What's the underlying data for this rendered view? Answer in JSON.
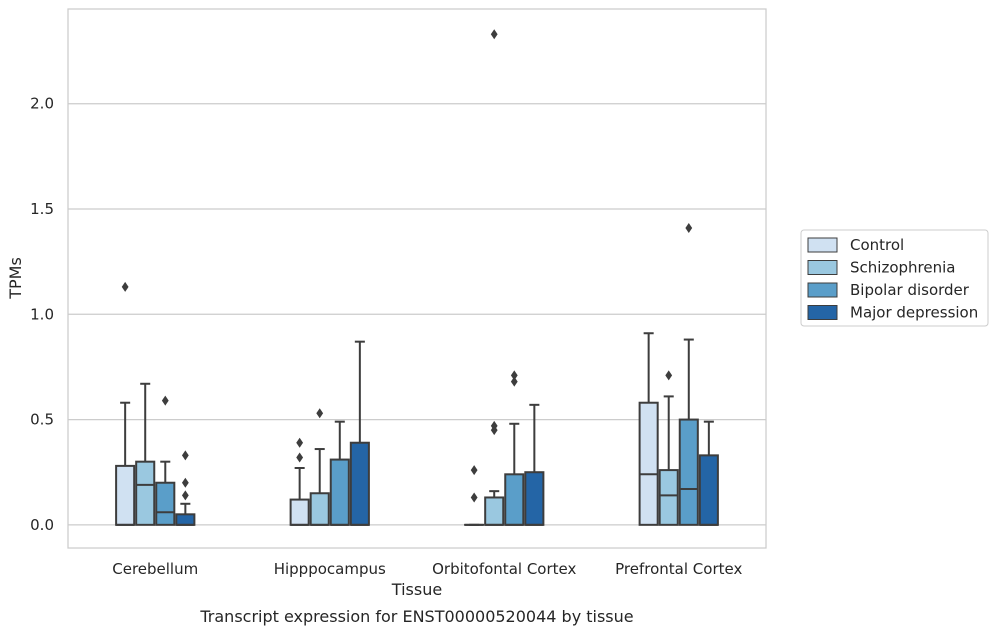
{
  "chart_data": {
    "type": "boxplot",
    "title": "Transcript expression for ENST00000520044 by tissue",
    "xlabel": "Tissue",
    "ylabel": "TPMs",
    "ylim": [
      -0.11,
      2.45
    ],
    "yticks": [
      0.0,
      0.5,
      1.0,
      1.5,
      2.0
    ],
    "ytick_labels": [
      "0.0",
      "0.5",
      "1.0",
      "1.5",
      "2.0"
    ],
    "grid": true,
    "legend_position": "right",
    "categories": [
      "Cerebellum",
      "Hipppocampus",
      "Orbitofontal Cortex",
      "Prefrontal Cortex"
    ],
    "series": [
      {
        "name": "Control",
        "color": "#d0e1f2",
        "boxes": [
          {
            "q1": 0.0,
            "median": 0.0,
            "q3": 0.28,
            "whisker_low": 0.0,
            "whisker_high": 0.58,
            "outliers": [
              1.13
            ]
          },
          {
            "q1": 0.0,
            "median": 0.0,
            "q3": 0.12,
            "whisker_low": 0.0,
            "whisker_high": 0.27,
            "outliers": [
              0.32,
              0.39
            ]
          },
          {
            "q1": 0.0,
            "median": 0.0,
            "q3": 0.0,
            "whisker_low": 0.0,
            "whisker_high": 0.0,
            "outliers": [
              0.13,
              0.26
            ]
          },
          {
            "q1": 0.0,
            "median": 0.24,
            "q3": 0.58,
            "whisker_low": 0.0,
            "whisker_high": 0.91,
            "outliers": []
          }
        ]
      },
      {
        "name": "Schizophrenia",
        "color": "#9ac8e0",
        "boxes": [
          {
            "q1": 0.0,
            "median": 0.19,
            "q3": 0.3,
            "whisker_low": 0.0,
            "whisker_high": 0.67,
            "outliers": []
          },
          {
            "q1": 0.0,
            "median": 0.0,
            "q3": 0.15,
            "whisker_low": 0.0,
            "whisker_high": 0.36,
            "outliers": [
              0.53
            ]
          },
          {
            "q1": 0.0,
            "median": 0.0,
            "q3": 0.13,
            "whisker_low": 0.0,
            "whisker_high": 0.16,
            "outliers": [
              0.45,
              0.47,
              2.33
            ]
          },
          {
            "q1": 0.0,
            "median": 0.14,
            "q3": 0.26,
            "whisker_low": 0.0,
            "whisker_high": 0.61,
            "outliers": [
              0.71
            ]
          }
        ]
      },
      {
        "name": "Bipolar disorder",
        "color": "#5a9ec9",
        "boxes": [
          {
            "q1": 0.0,
            "median": 0.06,
            "q3": 0.2,
            "whisker_low": 0.0,
            "whisker_high": 0.3,
            "outliers": [
              0.59
            ]
          },
          {
            "q1": 0.0,
            "median": 0.0,
            "q3": 0.31,
            "whisker_low": 0.0,
            "whisker_high": 0.49,
            "outliers": []
          },
          {
            "q1": 0.0,
            "median": 0.0,
            "q3": 0.24,
            "whisker_low": 0.0,
            "whisker_high": 0.48,
            "outliers": [
              0.68,
              0.71
            ]
          },
          {
            "q1": 0.0,
            "median": 0.17,
            "q3": 0.5,
            "whisker_low": 0.0,
            "whisker_high": 0.88,
            "outliers": [
              1.41
            ]
          }
        ]
      },
      {
        "name": "Major depression",
        "color": "#2465a6",
        "boxes": [
          {
            "q1": 0.0,
            "median": 0.0,
            "q3": 0.05,
            "whisker_low": 0.0,
            "whisker_high": 0.1,
            "outliers": [
              0.14,
              0.2,
              0.33
            ]
          },
          {
            "q1": 0.0,
            "median": 0.0,
            "q3": 0.39,
            "whisker_low": 0.0,
            "whisker_high": 0.87,
            "outliers": []
          },
          {
            "q1": 0.0,
            "median": 0.0,
            "q3": 0.25,
            "whisker_low": 0.0,
            "whisker_high": 0.57,
            "outliers": []
          },
          {
            "q1": 0.0,
            "median": 0.0,
            "q3": 0.33,
            "whisker_low": 0.0,
            "whisker_high": 0.49,
            "outliers": []
          }
        ]
      }
    ]
  }
}
